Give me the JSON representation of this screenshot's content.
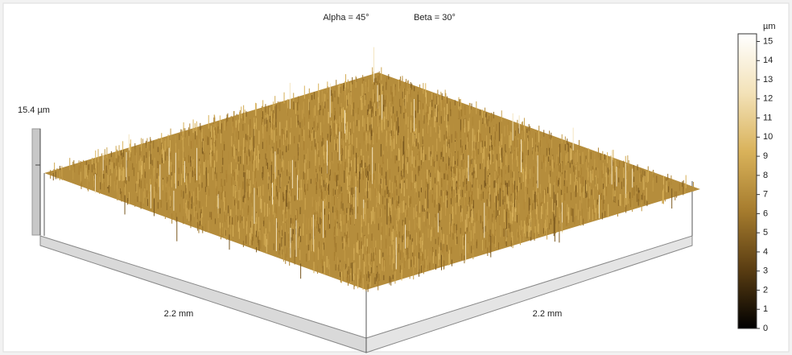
{
  "chart_data": {
    "type": "surface3d",
    "view_labels": [
      "Alpha = 45°",
      "Beta = 30°"
    ],
    "z_label": "15.4 µm",
    "x_label": "2.2 mm",
    "y_label": "2.2 mm",
    "colorbar": {
      "unit": "µm",
      "lim": [
        0,
        15.4
      ],
      "ticks": [
        0,
        1,
        2,
        3,
        4,
        5,
        6,
        7,
        8,
        9,
        10,
        11,
        12,
        13,
        14,
        15
      ],
      "colors": [
        "#000000",
        "#5a3d12",
        "#a67c2e",
        "#d9b25a",
        "#f3e2b8",
        "#ffffff"
      ]
    }
  }
}
